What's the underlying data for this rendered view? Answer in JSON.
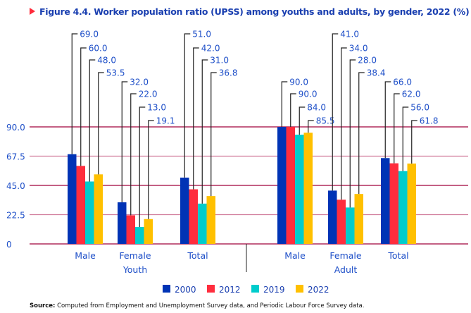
{
  "chart_data": {
    "type": "bar",
    "title": "Figure 4.4. Worker population ratio (UPSS) among youths and adults, by gender, 2022 (%)",
    "groups": [
      {
        "name": "Youth",
        "categories": [
          "Male",
          "Female",
          "Total"
        ]
      },
      {
        "name": "Adult",
        "categories": [
          "Male",
          "Female",
          "Total"
        ]
      }
    ],
    "series": [
      {
        "name": "2000",
        "color": "#0033b5",
        "values": [
          69.0,
          32.0,
          51.0,
          90.0,
          41.0,
          66.0
        ]
      },
      {
        "name": "2012",
        "color": "#ff2d3d",
        "values": [
          60.0,
          22.0,
          42.0,
          90.0,
          34.0,
          62.0
        ]
      },
      {
        "name": "2019",
        "color": "#00cccc",
        "values": [
          48.0,
          13.0,
          31.0,
          84.0,
          28.0,
          56.0
        ]
      },
      {
        "name": "2022",
        "color": "#ffc000",
        "values": [
          53.5,
          19.1,
          36.8,
          85.5,
          38.4,
          61.8
        ]
      }
    ],
    "yticks": [
      "0",
      "22.5",
      "45.0",
      "67.5",
      "90.0"
    ],
    "ylim": [
      0,
      90
    ],
    "grid": true,
    "legend": "bottom",
    "xlabel": "",
    "ylabel": ""
  },
  "source": {
    "label": "Source:",
    "text": " Computed from Employment and Unemployment Survey data, and Periodic Labour Force Survey data."
  }
}
